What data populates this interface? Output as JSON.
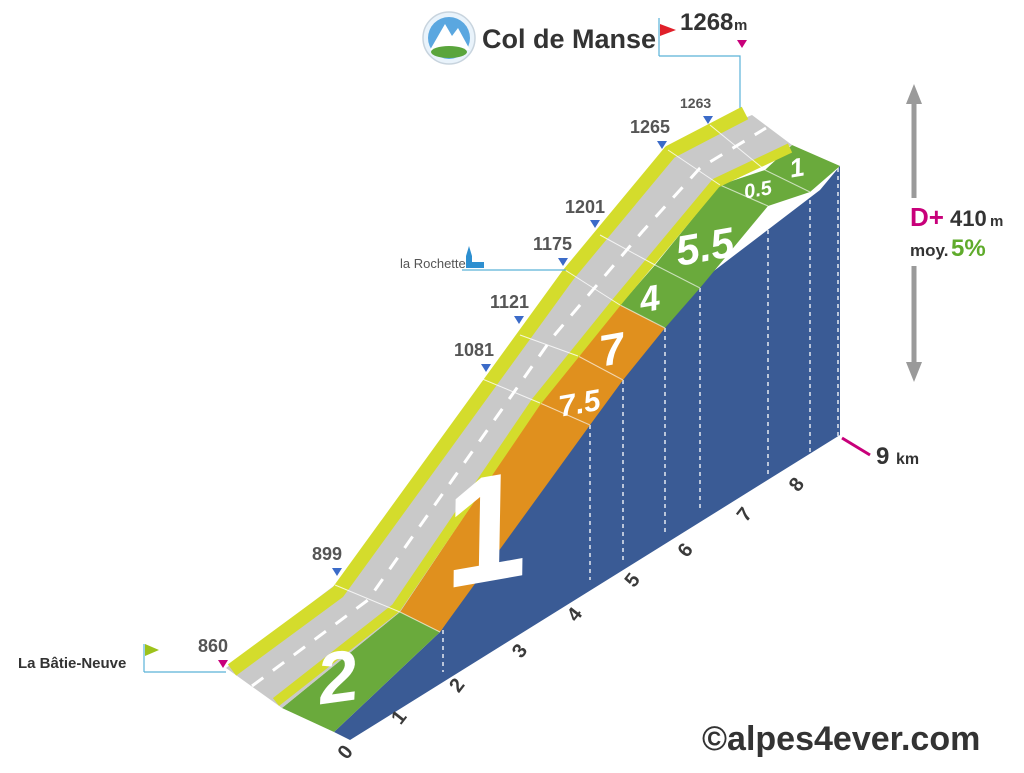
{
  "chart_data": {
    "type": "area",
    "title": "Col de Manse",
    "summit_altitude": "1268",
    "summit_unit": "m",
    "start_name": "La Bâtie-Neuve",
    "start_altitude": "860",
    "distance_label": "9",
    "distance_unit": "km",
    "gain_label": "D+",
    "gain_value": "410",
    "gain_unit": "m",
    "avg_label": "moy.",
    "avg_value": "5%",
    "copyright": "©alpes4ever.com",
    "x_ticks": [
      "0",
      "1",
      "2",
      "3",
      "4",
      "5",
      "6",
      "7",
      "8"
    ],
    "segments": [
      {
        "from_km": 0,
        "to_km": 2,
        "gradient": "2",
        "color": "#6aaa3c"
      },
      {
        "from_km": 2,
        "to_km": 5,
        "gradient": "1",
        "color": "#e0901e"
      },
      {
        "from_km": 5,
        "to_km": 6,
        "gradient": "7.5",
        "color": "#e0901e"
      },
      {
        "from_km": 6,
        "to_km": 6.5,
        "gradient": "7",
        "color": "#e0901e"
      },
      {
        "from_km": 6.5,
        "to_km": 7,
        "gradient": "4",
        "color": "#6aaa3c"
      },
      {
        "from_km": 7,
        "to_km": 8,
        "gradient": "5.5",
        "color": "#6aaa3c"
      },
      {
        "from_km": 8,
        "to_km": 8.5,
        "gradient": "0.5",
        "color": "#6aaa3c"
      },
      {
        "from_km": 8.5,
        "to_km": 9,
        "gradient": "1",
        "color": "#6aaa3c"
      }
    ],
    "altitude_markers": [
      {
        "km": 0.0,
        "alt": 860,
        "label": "860"
      },
      {
        "km": 2.3,
        "alt": 899,
        "label": "899"
      },
      {
        "km": 5.0,
        "alt": 1081,
        "label": "1081"
      },
      {
        "km": 5.8,
        "alt": 1121,
        "label": "1121"
      },
      {
        "km": 6.8,
        "alt": 1175,
        "label": "1175",
        "place": "la Rochette"
      },
      {
        "km": 7.2,
        "alt": 1201,
        "label": "1201"
      },
      {
        "km": 8.2,
        "alt": 1265,
        "label": "1265"
      },
      {
        "km": 8.7,
        "alt": 1263,
        "label": "1263"
      }
    ],
    "colors": {
      "side": "#3a5b95",
      "road": "#c9c9c9",
      "road_edge": "#d4dc2c",
      "green": "#6aaa3c",
      "orange": "#e0901e",
      "accent_pink": "#c8007a",
      "arrow_gray": "#9a9a9a",
      "avg_green": "#5fab2b"
    }
  }
}
